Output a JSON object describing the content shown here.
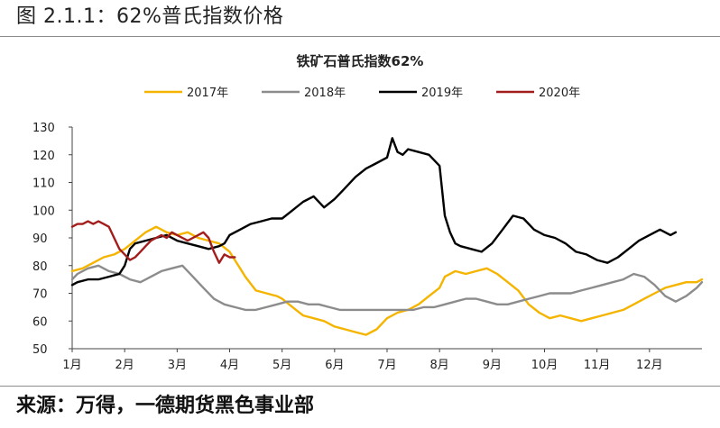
{
  "figure_caption": "图 2.1.1：62%普氏指数价格",
  "source_note": "来源：万得，一德期货黑色事业部",
  "chart_data": {
    "type": "line",
    "title": "铁矿石普氏指数62%",
    "xlabel": "",
    "ylabel": "",
    "ylim": [
      50,
      130
    ],
    "yticks": [
      "50",
      "60",
      "70",
      "80",
      "90",
      "100",
      "110",
      "120",
      "130"
    ],
    "xlim": [
      1,
      13
    ],
    "xtick_labels": [
      "1月",
      "2月",
      "3月",
      "4月",
      "5月",
      "6月",
      "7月",
      "8月",
      "9月",
      "10月",
      "11月",
      "12月"
    ],
    "legend_position": "top",
    "grid": false,
    "series": [
      {
        "name": "2017年",
        "color": "#f5b400",
        "x": [
          1.0,
          1.2,
          1.4,
          1.6,
          1.8,
          2.0,
          2.2,
          2.4,
          2.6,
          2.8,
          3.0,
          3.2,
          3.4,
          3.6,
          3.8,
          4.0,
          4.1,
          4.2,
          4.3,
          4.5,
          4.7,
          4.9,
          5.0,
          5.2,
          5.4,
          5.6,
          5.8,
          6.0,
          6.2,
          6.4,
          6.6,
          6.8,
          7.0,
          7.2,
          7.4,
          7.6,
          7.8,
          8.0,
          8.1,
          8.3,
          8.5,
          8.7,
          8.9,
          9.1,
          9.3,
          9.5,
          9.7,
          9.9,
          10.1,
          10.3,
          10.5,
          10.7,
          10.9,
          11.1,
          11.3,
          11.5,
          11.7,
          11.9,
          12.1,
          12.3,
          12.5,
          12.7,
          12.9,
          13.0
        ],
        "values": [
          78,
          79,
          81,
          83,
          84,
          86,
          89,
          92,
          94,
          92,
          91,
          92,
          90,
          89,
          88,
          85,
          82,
          79,
          76,
          71,
          70,
          69,
          68,
          65,
          62,
          61,
          60,
          58,
          57,
          56,
          55,
          57,
          61,
          63,
          64,
          66,
          69,
          72,
          76,
          78,
          77,
          78,
          79,
          77,
          74,
          71,
          66,
          63,
          61,
          62,
          61,
          60,
          61,
          62,
          63,
          64,
          66,
          68,
          70,
          72,
          73,
          74,
          74,
          75
        ]
      },
      {
        "name": "2018年",
        "color": "#8c8c8c",
        "x": [
          1.0,
          1.1,
          1.3,
          1.5,
          1.7,
          1.9,
          2.1,
          2.3,
          2.5,
          2.7,
          2.9,
          3.1,
          3.3,
          3.5,
          3.7,
          3.9,
          4.1,
          4.3,
          4.5,
          4.7,
          4.9,
          5.1,
          5.3,
          5.5,
          5.7,
          5.9,
          6.1,
          6.3,
          6.5,
          6.7,
          6.9,
          7.1,
          7.3,
          7.5,
          7.7,
          7.9,
          8.1,
          8.3,
          8.5,
          8.7,
          8.9,
          9.1,
          9.3,
          9.5,
          9.7,
          9.9,
          10.1,
          10.3,
          10.5,
          10.7,
          10.9,
          11.1,
          11.3,
          11.5,
          11.7,
          11.9,
          12.1,
          12.3,
          12.5,
          12.7,
          12.9,
          13.0
        ],
        "values": [
          75,
          77,
          79,
          80,
          78,
          77,
          75,
          74,
          76,
          78,
          79,
          80,
          76,
          72,
          68,
          66,
          65,
          64,
          64,
          65,
          66,
          67,
          67,
          66,
          66,
          65,
          64,
          64,
          64,
          64,
          64,
          64,
          64,
          64,
          65,
          65,
          66,
          67,
          68,
          68,
          67,
          66,
          66,
          67,
          68,
          69,
          70,
          70,
          70,
          71,
          72,
          73,
          74,
          75,
          77,
          76,
          73,
          69,
          67,
          69,
          72,
          74
        ]
      },
      {
        "name": "2019年",
        "color": "#000000",
        "x": [
          1.0,
          1.1,
          1.3,
          1.5,
          1.7,
          1.9,
          2.0,
          2.1,
          2.2,
          2.4,
          2.6,
          2.8,
          3.0,
          3.2,
          3.4,
          3.6,
          3.8,
          3.9,
          4.0,
          4.2,
          4.4,
          4.6,
          4.8,
          5.0,
          5.2,
          5.4,
          5.6,
          5.8,
          6.0,
          6.2,
          6.4,
          6.6,
          6.8,
          7.0,
          7.1,
          7.2,
          7.3,
          7.4,
          7.6,
          7.8,
          8.0,
          8.1,
          8.2,
          8.3,
          8.4,
          8.6,
          8.8,
          9.0,
          9.2,
          9.4,
          9.6,
          9.8,
          10.0,
          10.2,
          10.4,
          10.6,
          10.8,
          11.0,
          11.2,
          11.4,
          11.6,
          11.8,
          12.0,
          12.2,
          12.4,
          12.5
        ],
        "values": [
          73,
          74,
          75,
          75,
          76,
          77,
          80,
          86,
          88,
          89,
          90,
          91,
          89,
          88,
          87,
          86,
          87,
          88,
          91,
          93,
          95,
          96,
          97,
          97,
          100,
          103,
          105,
          101,
          104,
          108,
          112,
          115,
          117,
          119,
          126,
          121,
          120,
          122,
          121,
          120,
          116,
          98,
          92,
          88,
          87,
          86,
          85,
          88,
          93,
          98,
          97,
          93,
          91,
          90,
          88,
          85,
          84,
          82,
          81,
          83,
          86,
          89,
          91,
          93,
          91,
          92
        ]
      },
      {
        "name": "2020年",
        "color": "#a31d1d",
        "x": [
          1.0,
          1.1,
          1.2,
          1.3,
          1.4,
          1.5,
          1.6,
          1.7,
          1.8,
          1.9,
          2.0,
          2.1,
          2.2,
          2.3,
          2.4,
          2.5,
          2.6,
          2.7,
          2.8,
          2.9,
          3.0,
          3.1,
          3.2,
          3.3,
          3.4,
          3.5,
          3.6,
          3.7,
          3.8,
          3.9,
          4.0,
          4.1
        ],
        "values": [
          94,
          95,
          95,
          96,
          95,
          96,
          95,
          94,
          90,
          86,
          84,
          82,
          83,
          85,
          87,
          89,
          90,
          91,
          90,
          92,
          91,
          90,
          89,
          90,
          91,
          92,
          90,
          85,
          81,
          84,
          83,
          83
        ]
      }
    ]
  }
}
